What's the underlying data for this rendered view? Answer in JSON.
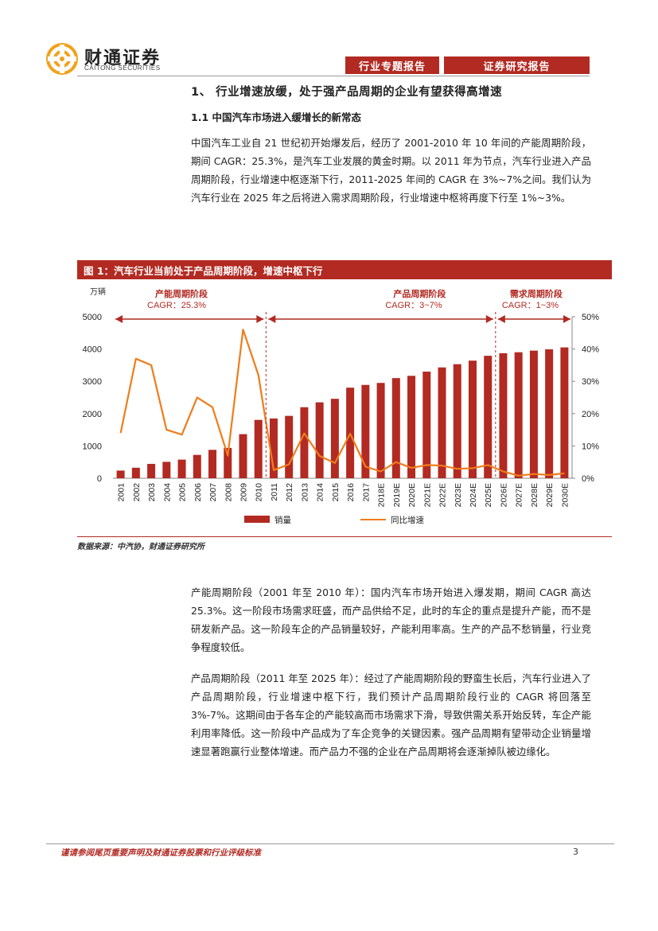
{
  "header": {
    "brand_cn": "财通证券",
    "brand_en": "CAITONG SECURITIES",
    "tab_1": "行业专题报告",
    "tab_2": "证券研究报告"
  },
  "colors": {
    "accent": "#b22a22",
    "bar": "#b22a22",
    "line": "#f07c1a"
  },
  "section": {
    "heading": "1、 行业增速放缓，处于强产品周期的企业有望获得高增速",
    "subheading": "1.1  中国汽车市场进入缓增长的新常态",
    "para1": "中国汽车工业自 21 世纪初开始爆发后，经历了 2001-2010 年 10 年间的产能周期阶段，期间 CAGR：25.3%，是汽车工业发展的黄金时期。以 2011 年为节点，汽车行业进入产品周期阶段，行业增速中枢逐渐下行，2011-2025 年间的 CAGR 在 3%~7%之间。我们认为汽车行业在 2025 年之后将进入需求周期阶段，行业增速中枢将再度下行至 1%~3%。"
  },
  "figure": {
    "title": "图 1：汽车行业当前处于产品周期阶段，增速中枢下行",
    "source": "数据来源：中汽协，财通证券研究所"
  },
  "chart_data": {
    "type": "bar",
    "categories": [
      "2001",
      "2002",
      "2003",
      "2004",
      "2005",
      "2006",
      "2007",
      "2008",
      "2009",
      "2010",
      "2011",
      "2012",
      "2013",
      "2014",
      "2015",
      "2016",
      "2017",
      "2018E",
      "2019E",
      "2020E",
      "2021E",
      "2022E",
      "2023E",
      "2024E",
      "2025E",
      "2026E",
      "2027E",
      "2028E",
      "2029E",
      "2030E"
    ],
    "series": [
      {
        "name": "销量",
        "type": "bar",
        "axis": "left",
        "values": [
          237,
          325,
          444,
          507,
          576,
          722,
          879,
          938,
          1364,
          1806,
          1850,
          1930,
          2198,
          2349,
          2459,
          2803,
          2888,
          2950,
          3100,
          3170,
          3300,
          3430,
          3530,
          3640,
          3790,
          3870,
          3900,
          3950,
          3990,
          4050
        ]
      },
      {
        "name": "同比增速",
        "type": "line",
        "axis": "right",
        "values": [
          0.14,
          0.37,
          0.35,
          0.15,
          0.135,
          0.25,
          0.22,
          0.07,
          0.46,
          0.32,
          0.025,
          0.043,
          0.139,
          0.069,
          0.047,
          0.138,
          0.036,
          0.021,
          0.05,
          0.032,
          0.041,
          0.039,
          0.029,
          0.031,
          0.041,
          0.021,
          0.008,
          0.013,
          0.01,
          0.015
        ]
      }
    ],
    "ylabel": "万辆",
    "ylim": [
      0,
      5000
    ],
    "yticks": [
      "0",
      "1000",
      "2000",
      "3000",
      "4000",
      "5000"
    ],
    "y2lim": [
      0,
      0.5
    ],
    "y2ticks": [
      "0%",
      "10%",
      "20%",
      "30%",
      "40%",
      "50%"
    ],
    "legend": "bottom",
    "phases": [
      {
        "name": "产能周期阶段",
        "cagr": "CAGR：25.3%",
        "from": "2001",
        "to": "2010"
      },
      {
        "name": "产品周期阶段",
        "cagr": "CAGR：3~7%",
        "from": "2011",
        "to": "2025E"
      },
      {
        "name": "需求周期阶段",
        "cagr": "CAGR：1~3%",
        "from": "2026E",
        "to": "2030E"
      }
    ]
  },
  "body": {
    "para2": "产能周期阶段（2001 年至 2010 年）：国内汽车市场开始进入爆发期，期间 CAGR 高达 25.3%。这一阶段市场需求旺盛，而产品供给不足，此时的车企的重点是提升产能，而不是研发新产品。这一阶段车企的产品销量较好，产能利用率高。生产的产品不愁销量，行业竞争程度较低。",
    "para3": "产品周期阶段（2011 年至 2025 年）：经过了产能周期阶段的野蛮生长后，汽车行业进入了产品周期阶段，行业增速中枢下行，我们预计产品周期阶段行业的 CAGR 将回落至 3%-7%。这期间由于各车企的产能较高而市场需求下滑，导致供需关系开始反转，车企产能利用率降低。这一阶段中产品成为了车企竞争的关键因素。强产品周期有望带动企业销量增速显著跑赢行业整体增速。而产品力不强的企业在产品周期将会逐渐掉队被边缘化。"
  },
  "footer": {
    "note": "谨请参阅尾页重要声明及财通证券股票和行业评级标准",
    "page": "3"
  }
}
